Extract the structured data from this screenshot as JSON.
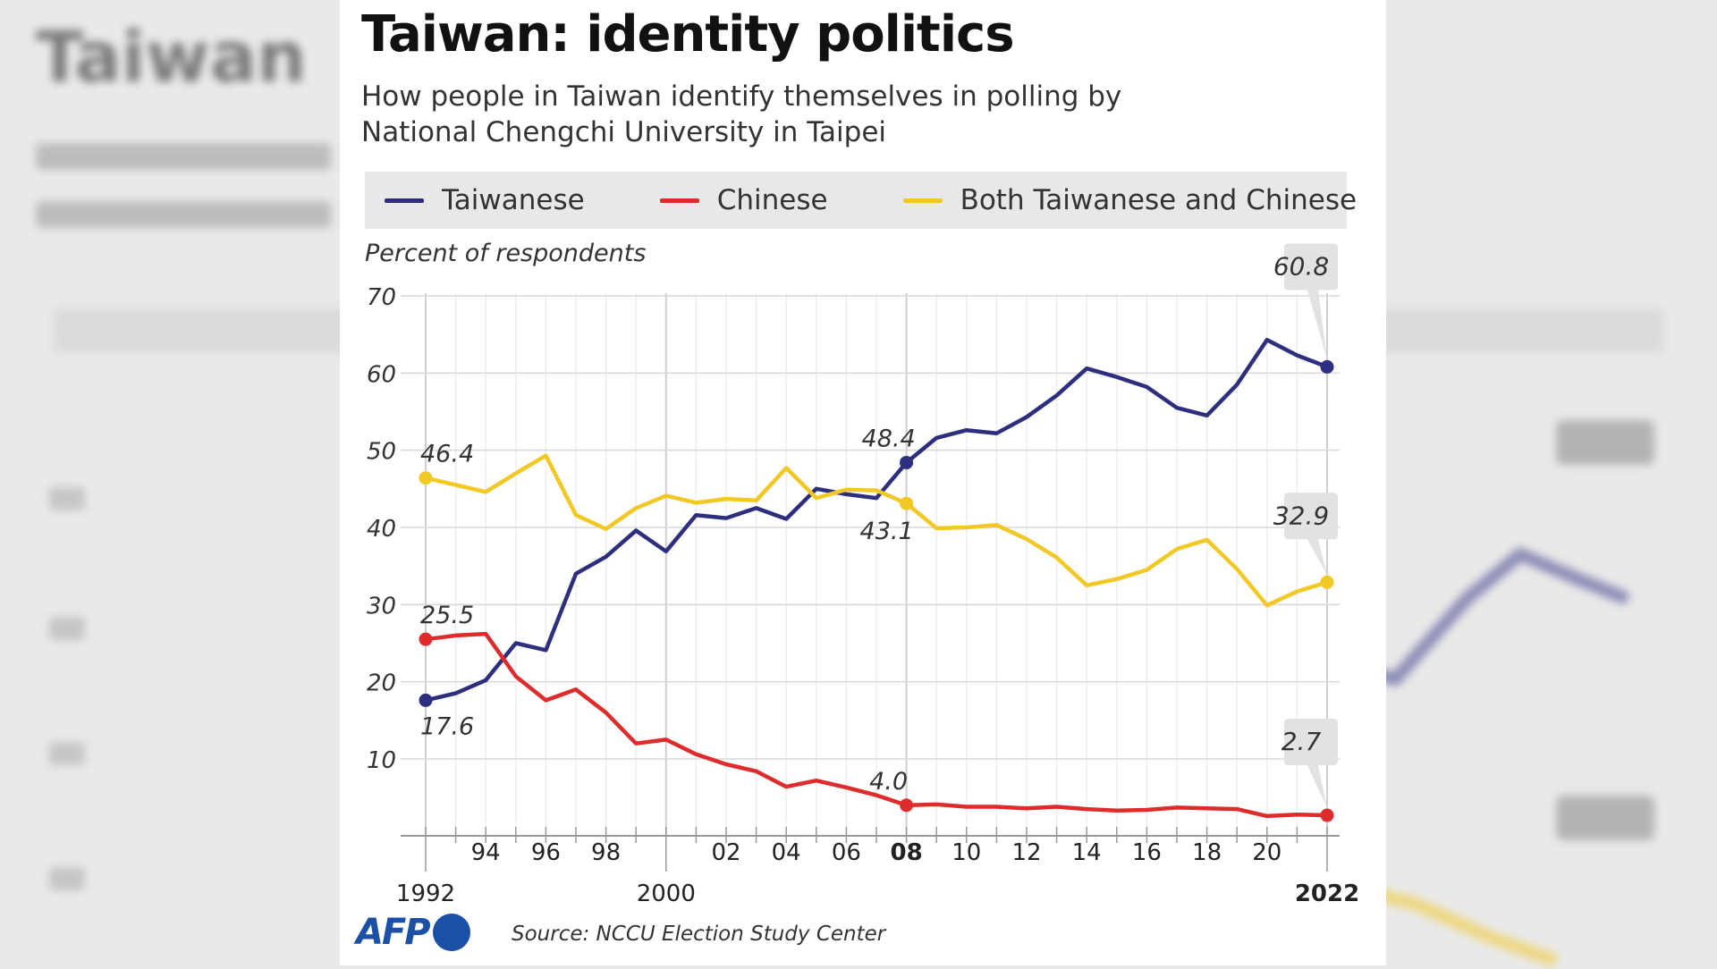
{
  "title": "Taiwan: identity politics",
  "subtitle": "How people in Taiwan identify themselves in polling by National Chengchi University in Taipei",
  "unit_label": "Percent of respondents",
  "source": "Source: NCCU Election Study Center",
  "logo_text": "AFP",
  "colors": {
    "taiwanese": "#2d2f7e",
    "chinese": "#de2b2b",
    "both": "#f2c824",
    "grid": "#d8d8d8",
    "callout_bg": "#e2e2e2"
  },
  "chart_data": {
    "type": "line",
    "title": "Taiwan: identity politics",
    "ylabel": "Percent of respondents",
    "xlabel": "",
    "ylim": [
      0,
      70
    ],
    "xlim": [
      1992,
      2022
    ],
    "yticks": [
      10,
      20,
      30,
      40,
      50,
      60,
      70
    ],
    "xtick_labels": [
      {
        "x": 1992,
        "label": "1992",
        "row": 2,
        "bold": false
      },
      {
        "x": 1994,
        "label": "94",
        "row": 1,
        "bold": false
      },
      {
        "x": 1996,
        "label": "96",
        "row": 1,
        "bold": false
      },
      {
        "x": 1998,
        "label": "98",
        "row": 1,
        "bold": false
      },
      {
        "x": 2000,
        "label": "2000",
        "row": 2,
        "bold": false
      },
      {
        "x": 2002,
        "label": "02",
        "row": 1,
        "bold": false
      },
      {
        "x": 2004,
        "label": "04",
        "row": 1,
        "bold": false
      },
      {
        "x": 2006,
        "label": "06",
        "row": 1,
        "bold": false
      },
      {
        "x": 2008,
        "label": "08",
        "row": 1,
        "bold": true
      },
      {
        "x": 2010,
        "label": "10",
        "row": 1,
        "bold": false
      },
      {
        "x": 2012,
        "label": "12",
        "row": 1,
        "bold": false
      },
      {
        "x": 2014,
        "label": "14",
        "row": 1,
        "bold": false
      },
      {
        "x": 2016,
        "label": "16",
        "row": 1,
        "bold": false
      },
      {
        "x": 2018,
        "label": "18",
        "row": 1,
        "bold": false
      },
      {
        "x": 2020,
        "label": "20",
        "row": 1,
        "bold": false
      },
      {
        "x": 2022,
        "label": "2022",
        "row": 2,
        "bold": true
      }
    ],
    "series": [
      {
        "key": "taiwanese",
        "name": "Taiwanese",
        "color": "#2d2f7e",
        "points": [
          [
            1992,
            17.6
          ],
          [
            1993,
            18.5
          ],
          [
            1994,
            20.2
          ],
          [
            1995,
            25.0
          ],
          [
            1996,
            24.1
          ],
          [
            1997,
            34.0
          ],
          [
            1998,
            36.2
          ],
          [
            1999,
            39.6
          ],
          [
            2000,
            36.9
          ],
          [
            2001,
            41.6
          ],
          [
            2002,
            41.2
          ],
          [
            2003,
            42.5
          ],
          [
            2004,
            41.1
          ],
          [
            2005,
            45.0
          ],
          [
            2006,
            44.3
          ],
          [
            2007,
            43.8
          ],
          [
            2008,
            48.4
          ],
          [
            2009,
            51.6
          ],
          [
            2010,
            52.6
          ],
          [
            2011,
            52.2
          ],
          [
            2012,
            54.3
          ],
          [
            2013,
            57.1
          ],
          [
            2014,
            60.6
          ],
          [
            2015,
            59.5
          ],
          [
            2016,
            58.2
          ],
          [
            2017,
            55.5
          ],
          [
            2018,
            54.5
          ],
          [
            2019,
            58.5
          ],
          [
            2020,
            64.3
          ],
          [
            2021,
            62.3
          ],
          [
            2022,
            60.8
          ]
        ]
      },
      {
        "key": "chinese",
        "name": "Chinese",
        "color": "#de2b2b",
        "points": [
          [
            1992,
            25.5
          ],
          [
            1993,
            26.0
          ],
          [
            1994,
            26.2
          ],
          [
            1995,
            20.7
          ],
          [
            1996,
            17.6
          ],
          [
            1997,
            19.0
          ],
          [
            1998,
            16.0
          ],
          [
            1999,
            12.0
          ],
          [
            2000,
            12.5
          ],
          [
            2001,
            10.6
          ],
          [
            2002,
            9.3
          ],
          [
            2003,
            8.4
          ],
          [
            2004,
            6.4
          ],
          [
            2005,
            7.2
          ],
          [
            2006,
            6.3
          ],
          [
            2007,
            5.3
          ],
          [
            2008,
            4.0
          ],
          [
            2009,
            4.1
          ],
          [
            2010,
            3.8
          ],
          [
            2011,
            3.8
          ],
          [
            2012,
            3.6
          ],
          [
            2013,
            3.8
          ],
          [
            2014,
            3.5
          ],
          [
            2015,
            3.3
          ],
          [
            2016,
            3.4
          ],
          [
            2017,
            3.7
          ],
          [
            2018,
            3.6
          ],
          [
            2019,
            3.5
          ],
          [
            2020,
            2.6
          ],
          [
            2021,
            2.8
          ],
          [
            2022,
            2.7
          ]
        ]
      },
      {
        "key": "both",
        "name": "Both Taiwanese and Chinese",
        "color": "#f2c824",
        "points": [
          [
            1992,
            46.4
          ],
          [
            1993,
            45.5
          ],
          [
            1994,
            44.6
          ],
          [
            1995,
            47.0
          ],
          [
            1996,
            49.3
          ],
          [
            1997,
            41.6
          ],
          [
            1998,
            39.8
          ],
          [
            1999,
            42.5
          ],
          [
            2000,
            44.1
          ],
          [
            2001,
            43.2
          ],
          [
            2002,
            43.7
          ],
          [
            2003,
            43.5
          ],
          [
            2004,
            47.7
          ],
          [
            2005,
            43.8
          ],
          [
            2006,
            44.9
          ],
          [
            2007,
            44.8
          ],
          [
            2008,
            43.1
          ],
          [
            2009,
            39.9
          ],
          [
            2010,
            40.0
          ],
          [
            2011,
            40.3
          ],
          [
            2012,
            38.5
          ],
          [
            2013,
            36.1
          ],
          [
            2014,
            32.5
          ],
          [
            2015,
            33.3
          ],
          [
            2016,
            34.5
          ],
          [
            2017,
            37.2
          ],
          [
            2018,
            38.4
          ],
          [
            2019,
            34.6
          ],
          [
            2020,
            29.9
          ],
          [
            2021,
            31.7
          ],
          [
            2022,
            32.9
          ]
        ]
      }
    ],
    "point_labels": [
      {
        "series": "both",
        "x": 1992,
        "y": 46.4,
        "text": "46.4",
        "pos": "above-right",
        "box": false
      },
      {
        "series": "chinese",
        "x": 1992,
        "y": 25.5,
        "text": "25.5",
        "pos": "above-right",
        "box": false
      },
      {
        "series": "taiwanese",
        "x": 1992,
        "y": 17.6,
        "text": "17.6",
        "pos": "below-right",
        "box": false
      },
      {
        "series": "taiwanese",
        "x": 2008,
        "y": 48.4,
        "text": "48.4",
        "pos": "above",
        "box": false
      },
      {
        "series": "both",
        "x": 2008,
        "y": 43.1,
        "text": "43.1",
        "pos": "below-left",
        "box": false
      },
      {
        "series": "chinese",
        "x": 2008,
        "y": 4.0,
        "text": "4.0",
        "pos": "above",
        "box": false
      },
      {
        "series": "taiwanese",
        "x": 2022,
        "y": 60.8,
        "text": "60.8",
        "pos": "callout",
        "box": true
      },
      {
        "series": "both",
        "x": 2022,
        "y": 32.9,
        "text": "32.9",
        "pos": "callout",
        "box": true
      },
      {
        "series": "chinese",
        "x": 2022,
        "y": 2.7,
        "text": "2.7",
        "pos": "callout",
        "box": true
      }
    ],
    "grid": true,
    "legend_position": "top"
  }
}
